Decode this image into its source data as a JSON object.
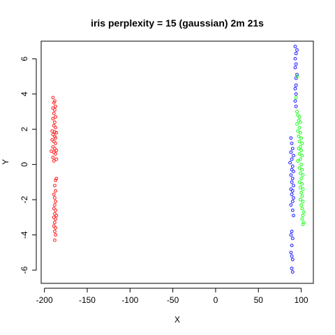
{
  "chart_data": {
    "type": "scatter",
    "title": "iris perplexity = 15 (gaussian) 2m 21s",
    "xlabel": "X",
    "ylabel": "Y",
    "xlim": [
      -203.8,
      114.2
    ],
    "ylim": [
      -6.75,
      7.0
    ],
    "xticks": [
      -200,
      -150,
      -100,
      -50,
      0,
      50,
      100
    ],
    "yticks": [
      -6,
      -4,
      -2,
      0,
      2,
      4,
      6
    ],
    "grid": false,
    "series": [
      {
        "color": "#ff2a2a",
        "points": [
          [
            -190,
            3.8
          ],
          [
            -188,
            3.6
          ],
          [
            -189,
            3.5
          ],
          [
            -187,
            3.3
          ],
          [
            -190,
            3.2
          ],
          [
            -188,
            3.1
          ],
          [
            -189,
            2.9
          ],
          [
            -187,
            2.7
          ],
          [
            -190,
            2.6
          ],
          [
            -188,
            2.4
          ],
          [
            -189,
            2.2
          ],
          [
            -187,
            2.1
          ],
          [
            -191,
            1.9
          ],
          [
            -188,
            1.85
          ],
          [
            -186,
            1.8
          ],
          [
            -190,
            1.7
          ],
          [
            -188,
            1.6
          ],
          [
            -187,
            1.5
          ],
          [
            -191,
            1.4
          ],
          [
            -189,
            1.3
          ],
          [
            -187,
            1.2
          ],
          [
            -190,
            1.0
          ],
          [
            -188,
            0.9
          ],
          [
            -186,
            0.8
          ],
          [
            -192,
            0.75
          ],
          [
            -189,
            0.7
          ],
          [
            -187,
            0.6
          ],
          [
            -190,
            0.4
          ],
          [
            -186,
            0.3
          ],
          [
            -189,
            0.2
          ],
          [
            -186,
            -0.8
          ],
          [
            -187,
            -0.9
          ],
          [
            -188,
            -1.2
          ],
          [
            -187,
            -1.5
          ],
          [
            -189,
            -1.7
          ],
          [
            -188,
            -1.9
          ],
          [
            -187,
            -2.1
          ],
          [
            -188,
            -2.3
          ],
          [
            -189,
            -2.5
          ],
          [
            -187,
            -2.6
          ],
          [
            -188,
            -2.8
          ],
          [
            -186,
            -2.9
          ],
          [
            -189,
            -3.0
          ],
          [
            -187,
            -3.1
          ],
          [
            -188,
            -3.3
          ],
          [
            -189,
            -3.5
          ],
          [
            -187,
            -3.6
          ],
          [
            -188,
            -3.8
          ],
          [
            -187,
            -4.0
          ],
          [
            -188,
            -4.3
          ]
        ]
      },
      {
        "color": "#2a2aff",
        "points": [
          [
            93,
            6.7
          ],
          [
            95,
            6.5
          ],
          [
            94,
            6.3
          ],
          [
            93,
            6.0
          ],
          [
            94,
            5.7
          ],
          [
            93,
            5.5
          ],
          [
            95,
            5.1
          ],
          [
            94,
            4.9
          ],
          [
            94,
            4.5
          ],
          [
            93,
            4.3
          ],
          [
            94,
            4.0
          ],
          [
            93,
            3.6
          ],
          [
            94,
            3.3
          ],
          [
            88,
            1.5
          ],
          [
            89,
            1.2
          ],
          [
            90,
            0.9
          ],
          [
            88,
            0.7
          ],
          [
            91,
            0.5
          ],
          [
            89,
            0.3
          ],
          [
            87,
            0.1
          ],
          [
            90,
            -0.1
          ],
          [
            89,
            -0.3
          ],
          [
            91,
            -0.4
          ],
          [
            88,
            -0.6
          ],
          [
            90,
            -0.8
          ],
          [
            89,
            -1.0
          ],
          [
            91,
            -1.2
          ],
          [
            88,
            -1.4
          ],
          [
            90,
            -1.5
          ],
          [
            89,
            -1.7
          ],
          [
            91,
            -1.9
          ],
          [
            90,
            -2.1
          ],
          [
            88,
            -2.3
          ],
          [
            90,
            -2.6
          ],
          [
            91,
            -2.9
          ],
          [
            89,
            -3.8
          ],
          [
            88,
            -4.0
          ],
          [
            90,
            -4.2
          ],
          [
            89,
            -4.6
          ],
          [
            88,
            -5.0
          ],
          [
            89,
            -5.2
          ],
          [
            90,
            -5.4
          ],
          [
            89,
            -5.9
          ],
          [
            90,
            -6.1
          ]
        ]
      },
      {
        "color": "#2aff2a",
        "points": [
          [
            95,
            5.0
          ],
          [
            94,
            3.8
          ],
          [
            95,
            3.0
          ],
          [
            96,
            2.8
          ],
          [
            98,
            2.7
          ],
          [
            97,
            2.5
          ],
          [
            99,
            2.4
          ],
          [
            95,
            2.3
          ],
          [
            98,
            2.1
          ],
          [
            96,
            1.9
          ],
          [
            99,
            1.8
          ],
          [
            97,
            1.6
          ],
          [
            100,
            1.5
          ],
          [
            98,
            1.3
          ],
          [
            101,
            1.2
          ],
          [
            99,
            1.0
          ],
          [
            97,
            0.9
          ],
          [
            100,
            0.8
          ],
          [
            98,
            0.6
          ],
          [
            101,
            0.5
          ],
          [
            99,
            0.3
          ],
          [
            96,
            0.2
          ],
          [
            100,
            0.0
          ],
          [
            98,
            -0.2
          ],
          [
            101,
            -0.3
          ],
          [
            99,
            -0.5
          ],
          [
            102,
            -0.6
          ],
          [
            100,
            -0.8
          ],
          [
            98,
            -1.0
          ],
          [
            101,
            -1.1
          ],
          [
            99,
            -1.3
          ],
          [
            102,
            -1.4
          ],
          [
            100,
            -1.6
          ],
          [
            101,
            -1.8
          ],
          [
            99,
            -2.0
          ],
          [
            102,
            -2.1
          ],
          [
            100,
            -2.3
          ],
          [
            101,
            -2.5
          ],
          [
            103,
            -2.7
          ],
          [
            102,
            -2.9
          ],
          [
            101,
            -3.1
          ],
          [
            103,
            -3.3
          ],
          [
            102,
            -3.4
          ]
        ]
      }
    ]
  }
}
